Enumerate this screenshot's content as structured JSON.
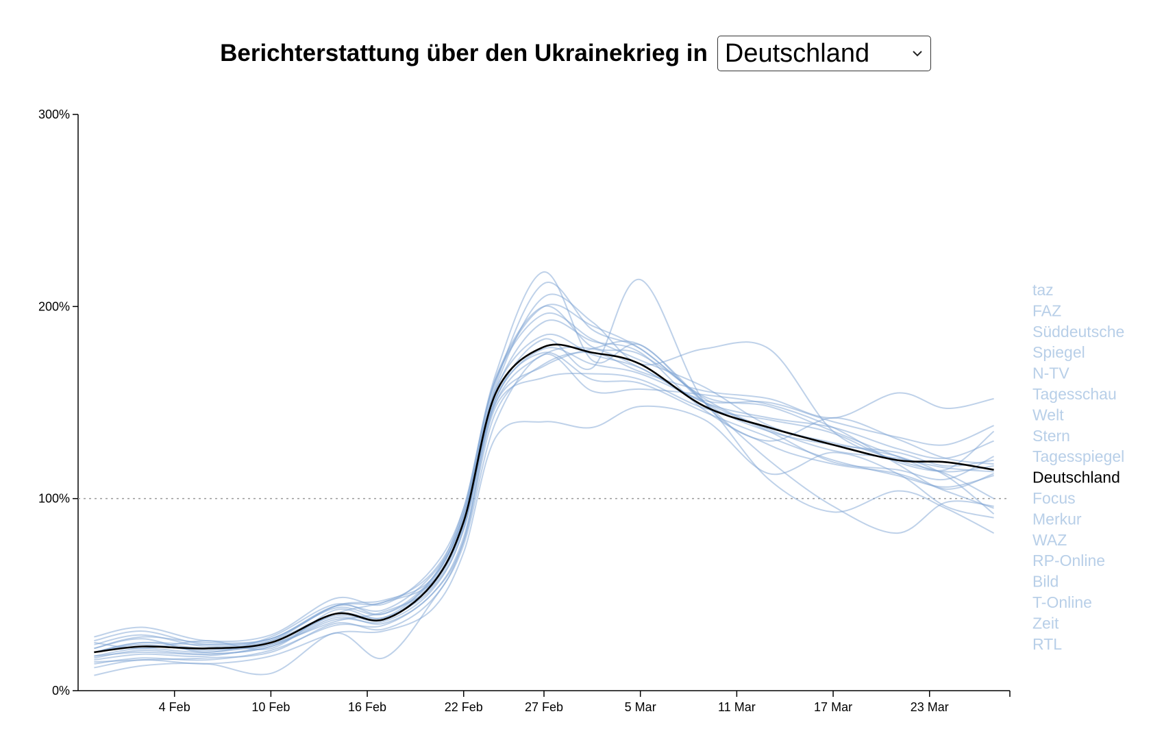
{
  "header": {
    "title": "Berichterstattung über den Ukrainekrieg in",
    "selected": "Deutschland"
  },
  "colors": {
    "outlet_line": "#7ea3d4",
    "highlight_line": "#000000",
    "legend_inactive": "#b8cfe8",
    "reference_line": "#999999"
  },
  "chart_data": {
    "type": "line",
    "title": "",
    "xlabel": "",
    "ylabel": "",
    "x_range": [
      "2022-01-29",
      "2022-03-28"
    ],
    "ylim": [
      0,
      300
    ],
    "y_ticks": [
      "0%",
      "100%",
      "200%",
      "300%"
    ],
    "x_ticks": [
      "4 Feb",
      "10 Feb",
      "16 Feb",
      "22 Feb",
      "27 Feb",
      "5 Mar",
      "11 Mar",
      "17 Mar",
      "23 Mar"
    ],
    "reference_line": 100,
    "grid": false,
    "legend_position": "right",
    "highlight": "Deutschland",
    "legend": [
      "taz",
      "FAZ",
      "Süddeutsche",
      "Spiegel",
      "N-TV",
      "Tagesschau",
      "Welt",
      "Stern",
      "Tagesspiegel",
      "Deutschland",
      "Focus",
      "Merkur",
      "WAZ",
      "RP-Online",
      "Bild",
      "T-Online",
      "Zeit",
      "RTL"
    ],
    "x": [
      "2022-01-30",
      "2022-02-02",
      "2022-02-06",
      "2022-02-10",
      "2022-02-14",
      "2022-02-17",
      "2022-02-20",
      "2022-02-22",
      "2022-02-24",
      "2022-02-27",
      "2022-03-02",
      "2022-03-05",
      "2022-03-09",
      "2022-03-13",
      "2022-03-17",
      "2022-03-21",
      "2022-03-24",
      "2022-03-27"
    ],
    "series": [
      {
        "name": "Deutschland",
        "values": [
          20,
          23,
          22,
          25,
          40,
          37,
          55,
          88,
          155,
          179,
          176,
          170,
          148,
          137,
          128,
          120,
          119,
          115
        ]
      },
      {
        "name": "taz",
        "values": [
          22,
          27,
          20,
          28,
          45,
          40,
          57,
          92,
          160,
          212,
          188,
          178,
          153,
          148,
          135,
          122,
          115,
          135
        ]
      },
      {
        "name": "FAZ",
        "values": [
          18,
          20,
          19,
          23,
          38,
          35,
          50,
          80,
          150,
          175,
          178,
          168,
          150,
          142,
          137,
          126,
          121,
          130
        ]
      },
      {
        "name": "Süddeutsche",
        "values": [
          25,
          22,
          26,
          22,
          42,
          38,
          58,
          95,
          165,
          218,
          172,
          180,
          150,
          135,
          128,
          124,
          117,
          120
        ]
      },
      {
        "name": "Spiegel",
        "values": [
          16,
          19,
          18,
          24,
          36,
          41,
          54,
          86,
          152,
          183,
          168,
          214,
          150,
          128,
          118,
          113,
          104,
          95
        ]
      },
      {
        "name": "N-TV",
        "values": [
          20,
          25,
          24,
          27,
          44,
          42,
          60,
          90,
          158,
          205,
          192,
          170,
          178,
          178,
          135,
          120,
          113,
          100
        ]
      },
      {
        "name": "Tagesschau",
        "values": [
          14,
          17,
          16,
          21,
          34,
          34,
          50,
          78,
          145,
          170,
          176,
          166,
          156,
          152,
          142,
          155,
          147,
          152
        ]
      },
      {
        "name": "Welt",
        "values": [
          24,
          29,
          23,
          26,
          40,
          38,
          53,
          84,
          156,
          192,
          182,
          176,
          146,
          130,
          142,
          131,
          121,
          118
        ]
      },
      {
        "name": "Stern",
        "values": [
          18,
          22,
          20,
          25,
          39,
          37,
          56,
          88,
          153,
          176,
          162,
          160,
          145,
          132,
          120,
          112,
          106,
          112
        ]
      },
      {
        "name": "Tagesspiegel",
        "values": [
          22,
          28,
          25,
          27,
          43,
          40,
          58,
          90,
          157,
          185,
          175,
          168,
          151,
          150,
          140,
          132,
          128,
          138
        ]
      },
      {
        "name": "Focus",
        "values": [
          15,
          16,
          17,
          20,
          35,
          32,
          47,
          78,
          148,
          163,
          165,
          162,
          147,
          141,
          134,
          119,
          114,
          117
        ]
      },
      {
        "name": "Merkur",
        "values": [
          20,
          24,
          21,
          26,
          44,
          47,
          58,
          92,
          162,
          196,
          183,
          172,
          158,
          138,
          129,
          122,
          112,
          92
        ]
      },
      {
        "name": "WAZ",
        "values": [
          12,
          16,
          14,
          18,
          30,
          31,
          42,
          72,
          132,
          140,
          137,
          148,
          141,
          113,
          124,
          113,
          96,
          90
        ]
      },
      {
        "name": "RP-Online",
        "values": [
          28,
          33,
          26,
          29,
          48,
          45,
          63,
          95,
          163,
          200,
          179,
          175,
          150,
          110,
          93,
          104,
          95,
          82
        ]
      },
      {
        "name": "Bild",
        "values": [
          17,
          21,
          19,
          23,
          37,
          36,
          52,
          84,
          152,
          178,
          170,
          165,
          150,
          135,
          119,
          115,
          110,
          122
        ]
      },
      {
        "name": "T-Online",
        "values": [
          20,
          25,
          22,
          24,
          40,
          46,
          56,
          86,
          150,
          169,
          178,
          180,
          150,
          120,
          96,
          82,
          98,
          96
        ]
      },
      {
        "name": "Zeit",
        "values": [
          26,
          31,
          24,
          27,
          44,
          46,
          61,
          93,
          162,
          200,
          190,
          178,
          152,
          136,
          125,
          121,
          116,
          114
        ]
      },
      {
        "name": "RTL",
        "values": [
          8,
          13,
          14,
          9,
          30,
          17,
          46,
          76,
          140,
          175,
          156,
          157,
          154,
          149,
          137,
          118,
          105,
          113
        ]
      }
    ]
  }
}
